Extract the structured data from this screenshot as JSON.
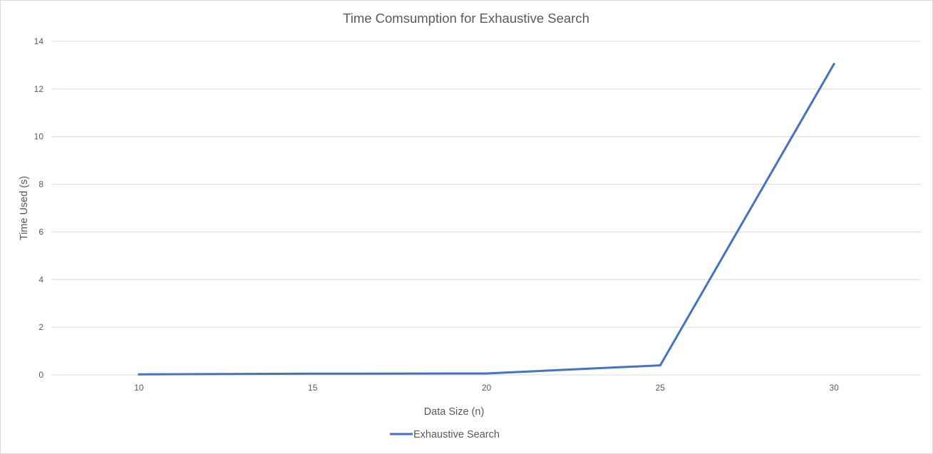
{
  "chart_data": {
    "type": "line",
    "title": "Time Comsumption for Exhaustive Search",
    "xlabel": "Data Size (n)",
    "ylabel": "Time Used (s)",
    "categories": [
      "10",
      "15",
      "20",
      "25",
      "30"
    ],
    "series": [
      {
        "name": "Exhaustive Search",
        "color": "#4472C4",
        "values": [
          0.02,
          0.05,
          0.06,
          0.4,
          13.05
        ]
      }
    ],
    "ylim": [
      0,
      14
    ],
    "yticks": [
      0,
      2,
      4,
      6,
      8,
      10,
      12,
      14
    ],
    "grid": true,
    "legend": "bottom"
  }
}
